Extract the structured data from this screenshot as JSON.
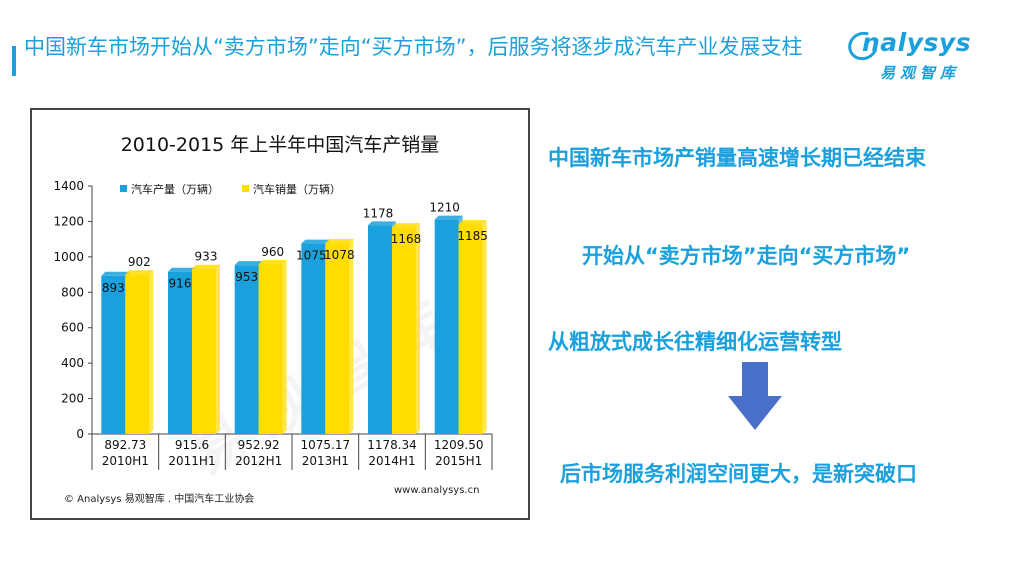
{
  "slide": {
    "title": "中国新车市场开始从“卖方市场”走向“买方市场”，后服务将逐步成汽车产业发展支柱",
    "logo_text": "nalysys",
    "logo_cn": "易观智库",
    "colors": {
      "accent": "#1aa0dc",
      "arrow": "#4a6fc9"
    }
  },
  "chart_data": {
    "type": "bar",
    "title": "2010-2015 年上半年中国汽车产销量",
    "categories": [
      "2010H1",
      "2011H1",
      "2012H1",
      "2013H1",
      "2014H1",
      "2015H1"
    ],
    "table_row": [
      "892.73",
      "915.6",
      "952.92",
      "1075.17",
      "1178.34",
      "1209.50"
    ],
    "series": [
      {
        "name": "汽车产量（万辆）",
        "values": [
          893,
          916,
          953,
          1075,
          1178,
          1210
        ],
        "color": "#1aa0dc"
      },
      {
        "name": "汽车销量（万辆）",
        "values": [
          902,
          933,
          960,
          1078,
          1168,
          1185
        ],
        "color": "#ffdd00"
      }
    ],
    "ylim": [
      0,
      1400
    ],
    "yticks": [
      0,
      200,
      400,
      600,
      800,
      1000,
      1200,
      1400
    ],
    "legend": "top-left",
    "grid": false,
    "watermark": "易观智库",
    "source": "© Analysys 易观智库 . 中国汽车工业协会",
    "website": "www.analysys.cn"
  },
  "points": [
    "中国新车市场产销量高速增长期已经结束",
    "开始从“卖方市场”走向“买方市场”",
    "从粗放式成长往精细化运营转型",
    "后市场服务利润空间更大，是新突破口"
  ]
}
